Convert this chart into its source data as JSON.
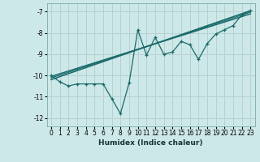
{
  "xlabel": "Humidex (Indice chaleur)",
  "background_color": "#cde8e8",
  "grid_color": "#b8d0d0",
  "line_color": "#1a6b6b",
  "xlim": [
    -0.5,
    23.5
  ],
  "ylim": [
    -12.4,
    -6.6
  ],
  "yticks": [
    -12,
    -11,
    -10,
    -9,
    -8,
    -7
  ],
  "xticks": [
    0,
    1,
    2,
    3,
    4,
    5,
    6,
    7,
    8,
    9,
    10,
    11,
    12,
    13,
    14,
    15,
    16,
    17,
    18,
    19,
    20,
    21,
    22,
    23
  ],
  "data_x": [
    0,
    1,
    2,
    3,
    4,
    5,
    6,
    7,
    8,
    9,
    10,
    11,
    12,
    13,
    14,
    15,
    16,
    17,
    18,
    19,
    20,
    21,
    22,
    23
  ],
  "data_y": [
    -10.0,
    -10.3,
    -10.5,
    -10.4,
    -10.4,
    -10.4,
    -10.4,
    -11.1,
    -11.8,
    -10.35,
    -7.85,
    -9.05,
    -8.2,
    -9.0,
    -8.9,
    -8.4,
    -8.55,
    -9.25,
    -8.5,
    -8.05,
    -7.85,
    -7.65,
    -7.15,
    -6.95
  ],
  "trend1_x": [
    0,
    23
  ],
  "trend1_y": [
    -10.2,
    -6.95
  ],
  "trend2_x": [
    0,
    23
  ],
  "trend2_y": [
    -10.05,
    -7.1
  ],
  "trend3_x": [
    0,
    23
  ],
  "trend3_y": [
    -10.12,
    -7.02
  ]
}
